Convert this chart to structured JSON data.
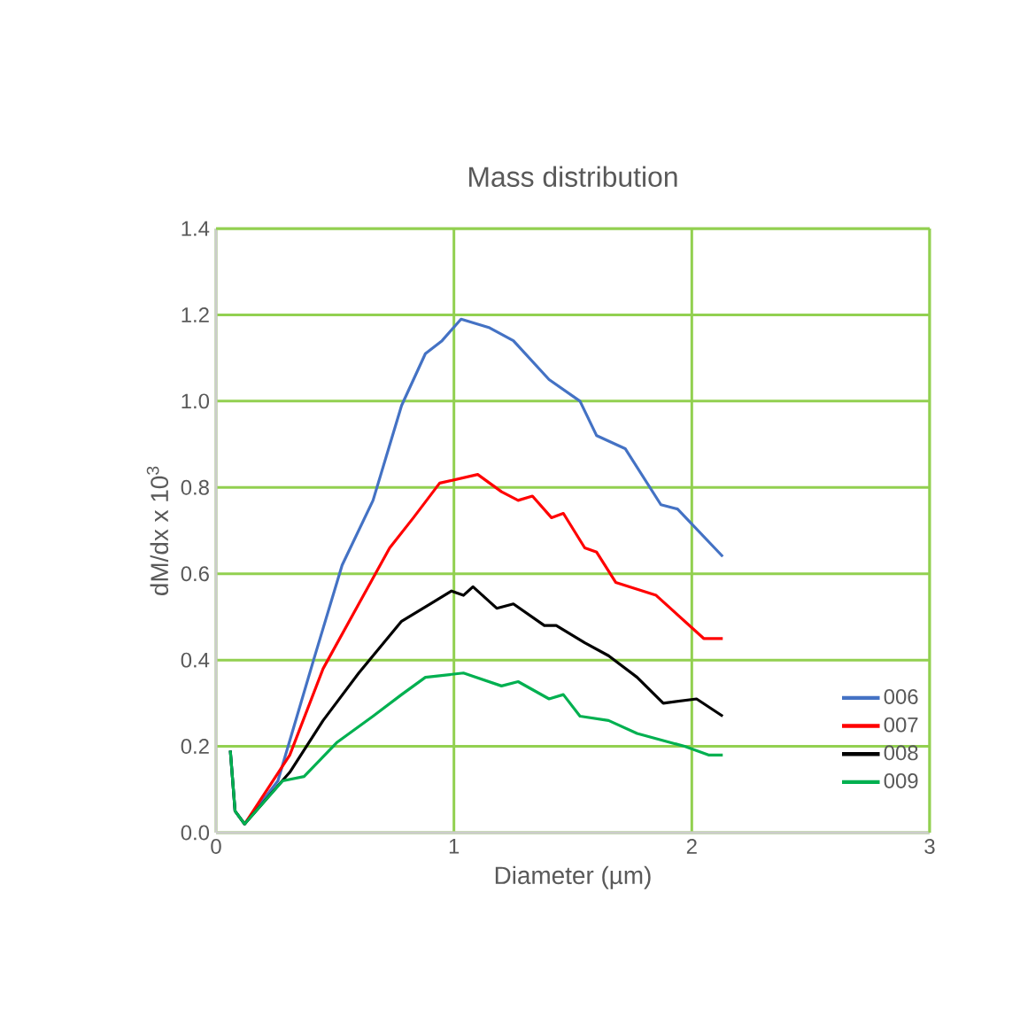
{
  "chart_data": {
    "type": "line",
    "title": "Mass distribution",
    "xlabel": "Diameter (µm)",
    "ylabel": "dM/dx  x 10$^{3}$",
    "xlim": [
      0,
      3
    ],
    "xticks": [
      0,
      1,
      2,
      3
    ],
    "ylim": [
      0,
      1.4
    ],
    "yticks": [
      {
        "value": 0,
        "label": "0.0"
      },
      0.2,
      0.4,
      0.6,
      0.8,
      {
        "value": 1,
        "label": "1.0"
      },
      1.2,
      1.4
    ],
    "grid": true,
    "legend": "bottom right",
    "marker": "none",
    "line_style": "solid",
    "series": [
      {
        "name": "006",
        "color": "#4472c4",
        "x": [
          0.06,
          0.08,
          0.12,
          0.26,
          0.41,
          0.53,
          0.66,
          0.78,
          0.88,
          0.95,
          1.03,
          1.15,
          1.25,
          1.4,
          1.53,
          1.6,
          1.72,
          1.87,
          1.94,
          2.13
        ],
        "values": [
          0.19,
          0.05,
          0.02,
          0.12,
          0.4,
          0.62,
          0.77,
          0.99,
          1.11,
          1.14,
          1.19,
          1.17,
          1.14,
          1.05,
          1.0,
          0.92,
          0.89,
          0.76,
          0.75,
          0.64
        ]
      },
      {
        "name": "007",
        "color": "#ff0000",
        "x": [
          0.12,
          0.31,
          0.45,
          0.6,
          0.73,
          0.83,
          0.94,
          1.1,
          1.2,
          1.27,
          1.33,
          1.41,
          1.46,
          1.55,
          1.6,
          1.68,
          1.85,
          2.05,
          2.13
        ],
        "values": [
          0.02,
          0.18,
          0.38,
          0.53,
          0.66,
          0.73,
          0.81,
          0.83,
          0.79,
          0.77,
          0.78,
          0.73,
          0.74,
          0.66,
          0.65,
          0.58,
          0.55,
          0.45,
          0.45
        ]
      },
      {
        "name": "008",
        "color": "#000000",
        "x": [
          0.06,
          0.08,
          0.12,
          0.31,
          0.45,
          0.6,
          0.78,
          0.9,
          0.99,
          1.04,
          1.08,
          1.18,
          1.25,
          1.38,
          1.43,
          1.55,
          1.65,
          1.77,
          1.88,
          2.02,
          2.13
        ],
        "values": [
          0.19,
          0.05,
          0.02,
          0.14,
          0.26,
          0.37,
          0.49,
          0.53,
          0.56,
          0.55,
          0.57,
          0.52,
          0.53,
          0.48,
          0.48,
          0.44,
          0.41,
          0.36,
          0.3,
          0.31,
          0.27
        ]
      },
      {
        "name": "009",
        "color": "#00b050",
        "x": [
          0.06,
          0.08,
          0.12,
          0.28,
          0.37,
          0.51,
          0.66,
          0.78,
          0.88,
          1.04,
          1.2,
          1.27,
          1.4,
          1.46,
          1.53,
          1.65,
          1.77,
          1.97,
          2.07,
          2.13
        ],
        "values": [
          0.19,
          0.05,
          0.02,
          0.12,
          0.13,
          0.21,
          0.27,
          0.32,
          0.36,
          0.37,
          0.34,
          0.35,
          0.31,
          0.32,
          0.27,
          0.26,
          0.23,
          0.2,
          0.18,
          0.18
        ]
      }
    ]
  }
}
